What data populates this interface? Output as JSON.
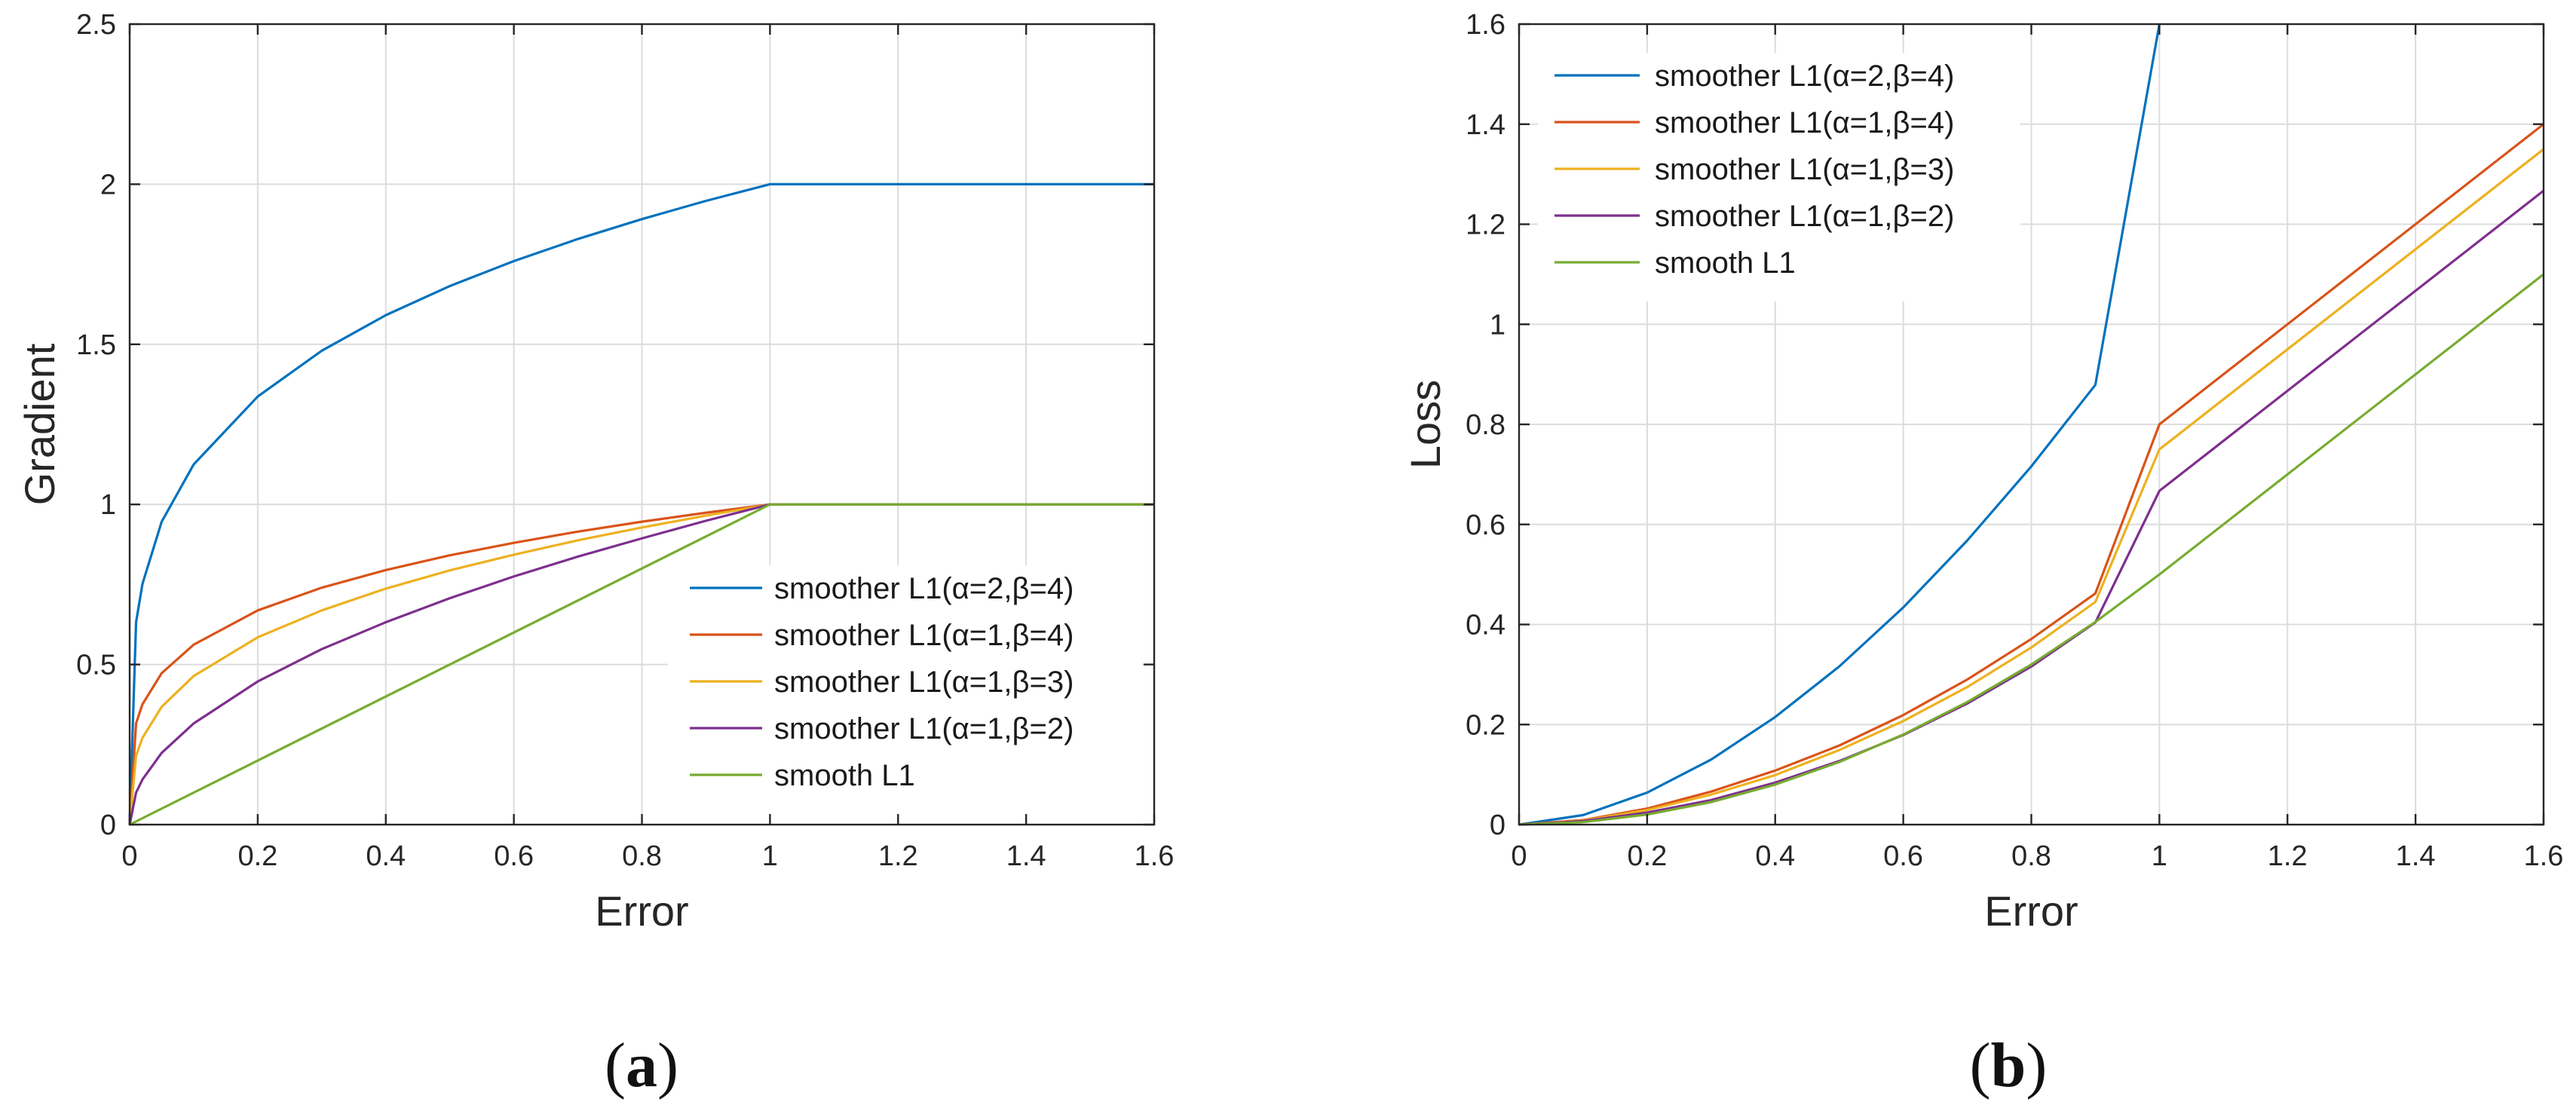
{
  "colors": {
    "series": [
      "#0072BD",
      "#D95319",
      "#EDB120",
      "#7E2F8E",
      "#77AC30"
    ],
    "grid": "#dcdcdc",
    "axis": "#262626",
    "background": "#ffffff"
  },
  "chart_data": [
    {
      "type": "line",
      "panel_label": "a",
      "xlabel": "Error",
      "ylabel": "Gradient",
      "xlim": [
        0,
        1.6
      ],
      "ylim": [
        0,
        2.5
      ],
      "xticks": [
        0,
        0.2,
        0.4,
        0.6,
        0.8,
        1,
        1.2,
        1.4,
        1.6
      ],
      "xtick_labels": [
        "0",
        "0.2",
        "0.4",
        "0.6",
        "0.8",
        "1",
        "1.2",
        "1.4",
        "1.6"
      ],
      "yticks": [
        0,
        0.5,
        1,
        1.5,
        2,
        2.5
      ],
      "ytick_labels": [
        "0",
        "0.5",
        "1",
        "1.5",
        "2",
        "2.5"
      ],
      "grid": true,
      "legend_position": "bottom-right",
      "series": [
        {
          "name": "smoother L1(α=2,β=4)",
          "x": [
            0,
            0.01,
            0.02,
            0.05,
            0.1,
            0.2,
            0.3,
            0.4,
            0.5,
            0.6,
            0.7,
            0.8,
            0.9,
            1,
            1.2,
            1.4,
            1.6
          ],
          "y": [
            0,
            0.632,
            0.752,
            0.946,
            1.125,
            1.337,
            1.48,
            1.591,
            1.682,
            1.76,
            1.829,
            1.891,
            1.948,
            2,
            2,
            2,
            2
          ]
        },
        {
          "name": "smoother L1(α=1,β=4)",
          "x": [
            0,
            0.01,
            0.02,
            0.05,
            0.1,
            0.2,
            0.3,
            0.4,
            0.5,
            0.6,
            0.7,
            0.8,
            0.9,
            1,
            1.2,
            1.4,
            1.6
          ],
          "y": [
            0,
            0.316,
            0.376,
            0.473,
            0.562,
            0.669,
            0.74,
            0.795,
            0.841,
            0.88,
            0.915,
            0.946,
            0.974,
            1,
            1,
            1,
            1
          ]
        },
        {
          "name": "smoother L1(α=1,β=3)",
          "x": [
            0,
            0.01,
            0.02,
            0.05,
            0.1,
            0.2,
            0.3,
            0.4,
            0.5,
            0.6,
            0.7,
            0.8,
            0.9,
            1,
            1.2,
            1.4,
            1.6
          ],
          "y": [
            0,
            0.215,
            0.271,
            0.368,
            0.464,
            0.585,
            0.669,
            0.737,
            0.794,
            0.843,
            0.888,
            0.928,
            0.965,
            1,
            1,
            1,
            1
          ]
        },
        {
          "name": "smoother L1(α=1,β=2)",
          "x": [
            0,
            0.01,
            0.02,
            0.05,
            0.1,
            0.2,
            0.3,
            0.4,
            0.5,
            0.6,
            0.7,
            0.8,
            0.9,
            1,
            1.2,
            1.4,
            1.6
          ],
          "y": [
            0,
            0.1,
            0.141,
            0.224,
            0.316,
            0.447,
            0.548,
            0.632,
            0.707,
            0.775,
            0.837,
            0.894,
            0.949,
            1,
            1,
            1,
            1
          ]
        },
        {
          "name": "smooth L1",
          "x": [
            0,
            1,
            1.6
          ],
          "y": [
            0,
            1,
            1
          ]
        }
      ]
    },
    {
      "type": "line",
      "panel_label": "b",
      "xlabel": "Error",
      "ylabel": "Loss",
      "xlim": [
        0,
        1.6
      ],
      "ylim": [
        0,
        1.6
      ],
      "xticks": [
        0,
        0.2,
        0.4,
        0.6,
        0.8,
        1,
        1.2,
        1.4,
        1.6
      ],
      "xtick_labels": [
        "0",
        "0.2",
        "0.4",
        "0.6",
        "0.8",
        "1",
        "1.2",
        "1.4",
        "1.6"
      ],
      "yticks": [
        0,
        0.2,
        0.4,
        0.6,
        0.8,
        1,
        1.2,
        1.4,
        1.6
      ],
      "ytick_labels": [
        "0",
        "0.2",
        "0.4",
        "0.6",
        "0.8",
        "1",
        "1.2",
        "1.4",
        "1.6"
      ],
      "grid": true,
      "legend_position": "top-left",
      "series": [
        {
          "name": "smoother L1(α=2,β=4)",
          "x": [
            0,
            0.1,
            0.2,
            0.3,
            0.4,
            0.5,
            0.6,
            0.7,
            0.8,
            0.9,
            1
          ],
          "y": [
            0,
            0.019,
            0.064,
            0.13,
            0.215,
            0.316,
            0.434,
            0.568,
            0.716,
            0.879,
            1.6
          ]
        },
        {
          "name": "smoother L1(α=1,β=4)",
          "x": [
            0,
            0.1,
            0.2,
            0.3,
            0.4,
            0.5,
            0.6,
            0.7,
            0.8,
            0.9,
            1,
            1.2,
            1.4,
            1.6
          ],
          "y": [
            0,
            0.009,
            0.032,
            0.066,
            0.108,
            0.158,
            0.219,
            0.29,
            0.371,
            0.462,
            0.8,
            1,
            1.2,
            1.4
          ]
        },
        {
          "name": "smoother L1(α=1,β=3)",
          "x": [
            0,
            0.1,
            0.2,
            0.3,
            0.4,
            0.5,
            0.6,
            0.7,
            0.8,
            0.9,
            1,
            1.2,
            1.4,
            1.6
          ],
          "y": [
            0,
            0.008,
            0.029,
            0.06,
            0.099,
            0.149,
            0.207,
            0.275,
            0.354,
            0.445,
            0.75,
            0.95,
            1.15,
            1.35
          ]
        },
        {
          "name": "smoother L1(α=1,β=2)",
          "x": [
            0,
            0.1,
            0.2,
            0.3,
            0.4,
            0.5,
            0.6,
            0.7,
            0.8,
            0.9,
            1,
            1.2,
            1.4,
            1.6
          ],
          "y": [
            0,
            0.007,
            0.024,
            0.049,
            0.084,
            0.127,
            0.179,
            0.242,
            0.316,
            0.404,
            0.667,
            0.867,
            1.067,
            1.267
          ]
        },
        {
          "name": "smooth L1",
          "x": [
            0,
            0.1,
            0.2,
            0.3,
            0.4,
            0.5,
            0.6,
            0.7,
            0.8,
            0.9,
            1,
            1.2,
            1.4,
            1.6
          ],
          "y": [
            0,
            0.005,
            0.02,
            0.045,
            0.08,
            0.125,
            0.18,
            0.245,
            0.32,
            0.405,
            0.5,
            0.7,
            0.9,
            1.1
          ]
        }
      ]
    }
  ]
}
